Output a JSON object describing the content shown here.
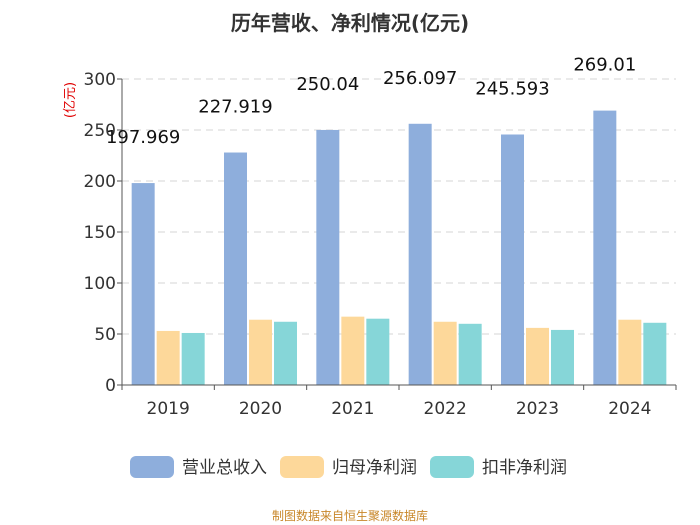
{
  "chart_data": {
    "type": "bar",
    "title": "历年营收、净利情况(亿元)",
    "ylabel": "(亿元)",
    "xlabel": "",
    "ylim": [
      0,
      300
    ],
    "yticks": [
      0,
      50,
      100,
      150,
      200,
      250,
      300
    ],
    "grid": true,
    "categories": [
      "2019",
      "2020",
      "2021",
      "2022",
      "2023",
      "2024"
    ],
    "series": [
      {
        "name": "营业总收入",
        "color": "#8eaedc",
        "values": [
          197.969,
          227.919,
          250.04,
          256.097,
          245.593,
          269.01
        ],
        "labels": [
          "197.969",
          "227.919",
          "250.04",
          "256.097",
          "245.593",
          "269.01"
        ]
      },
      {
        "name": "归母净利润",
        "color": "#fdd89a",
        "values": [
          53,
          64,
          67,
          62,
          56,
          64
        ]
      },
      {
        "name": "扣非净利润",
        "color": "#86d6d8",
        "values": [
          51,
          62,
          65,
          60,
          54,
          61
        ]
      }
    ],
    "legend_position": "bottom"
  },
  "source": "制图数据来自恒生聚源数据库"
}
